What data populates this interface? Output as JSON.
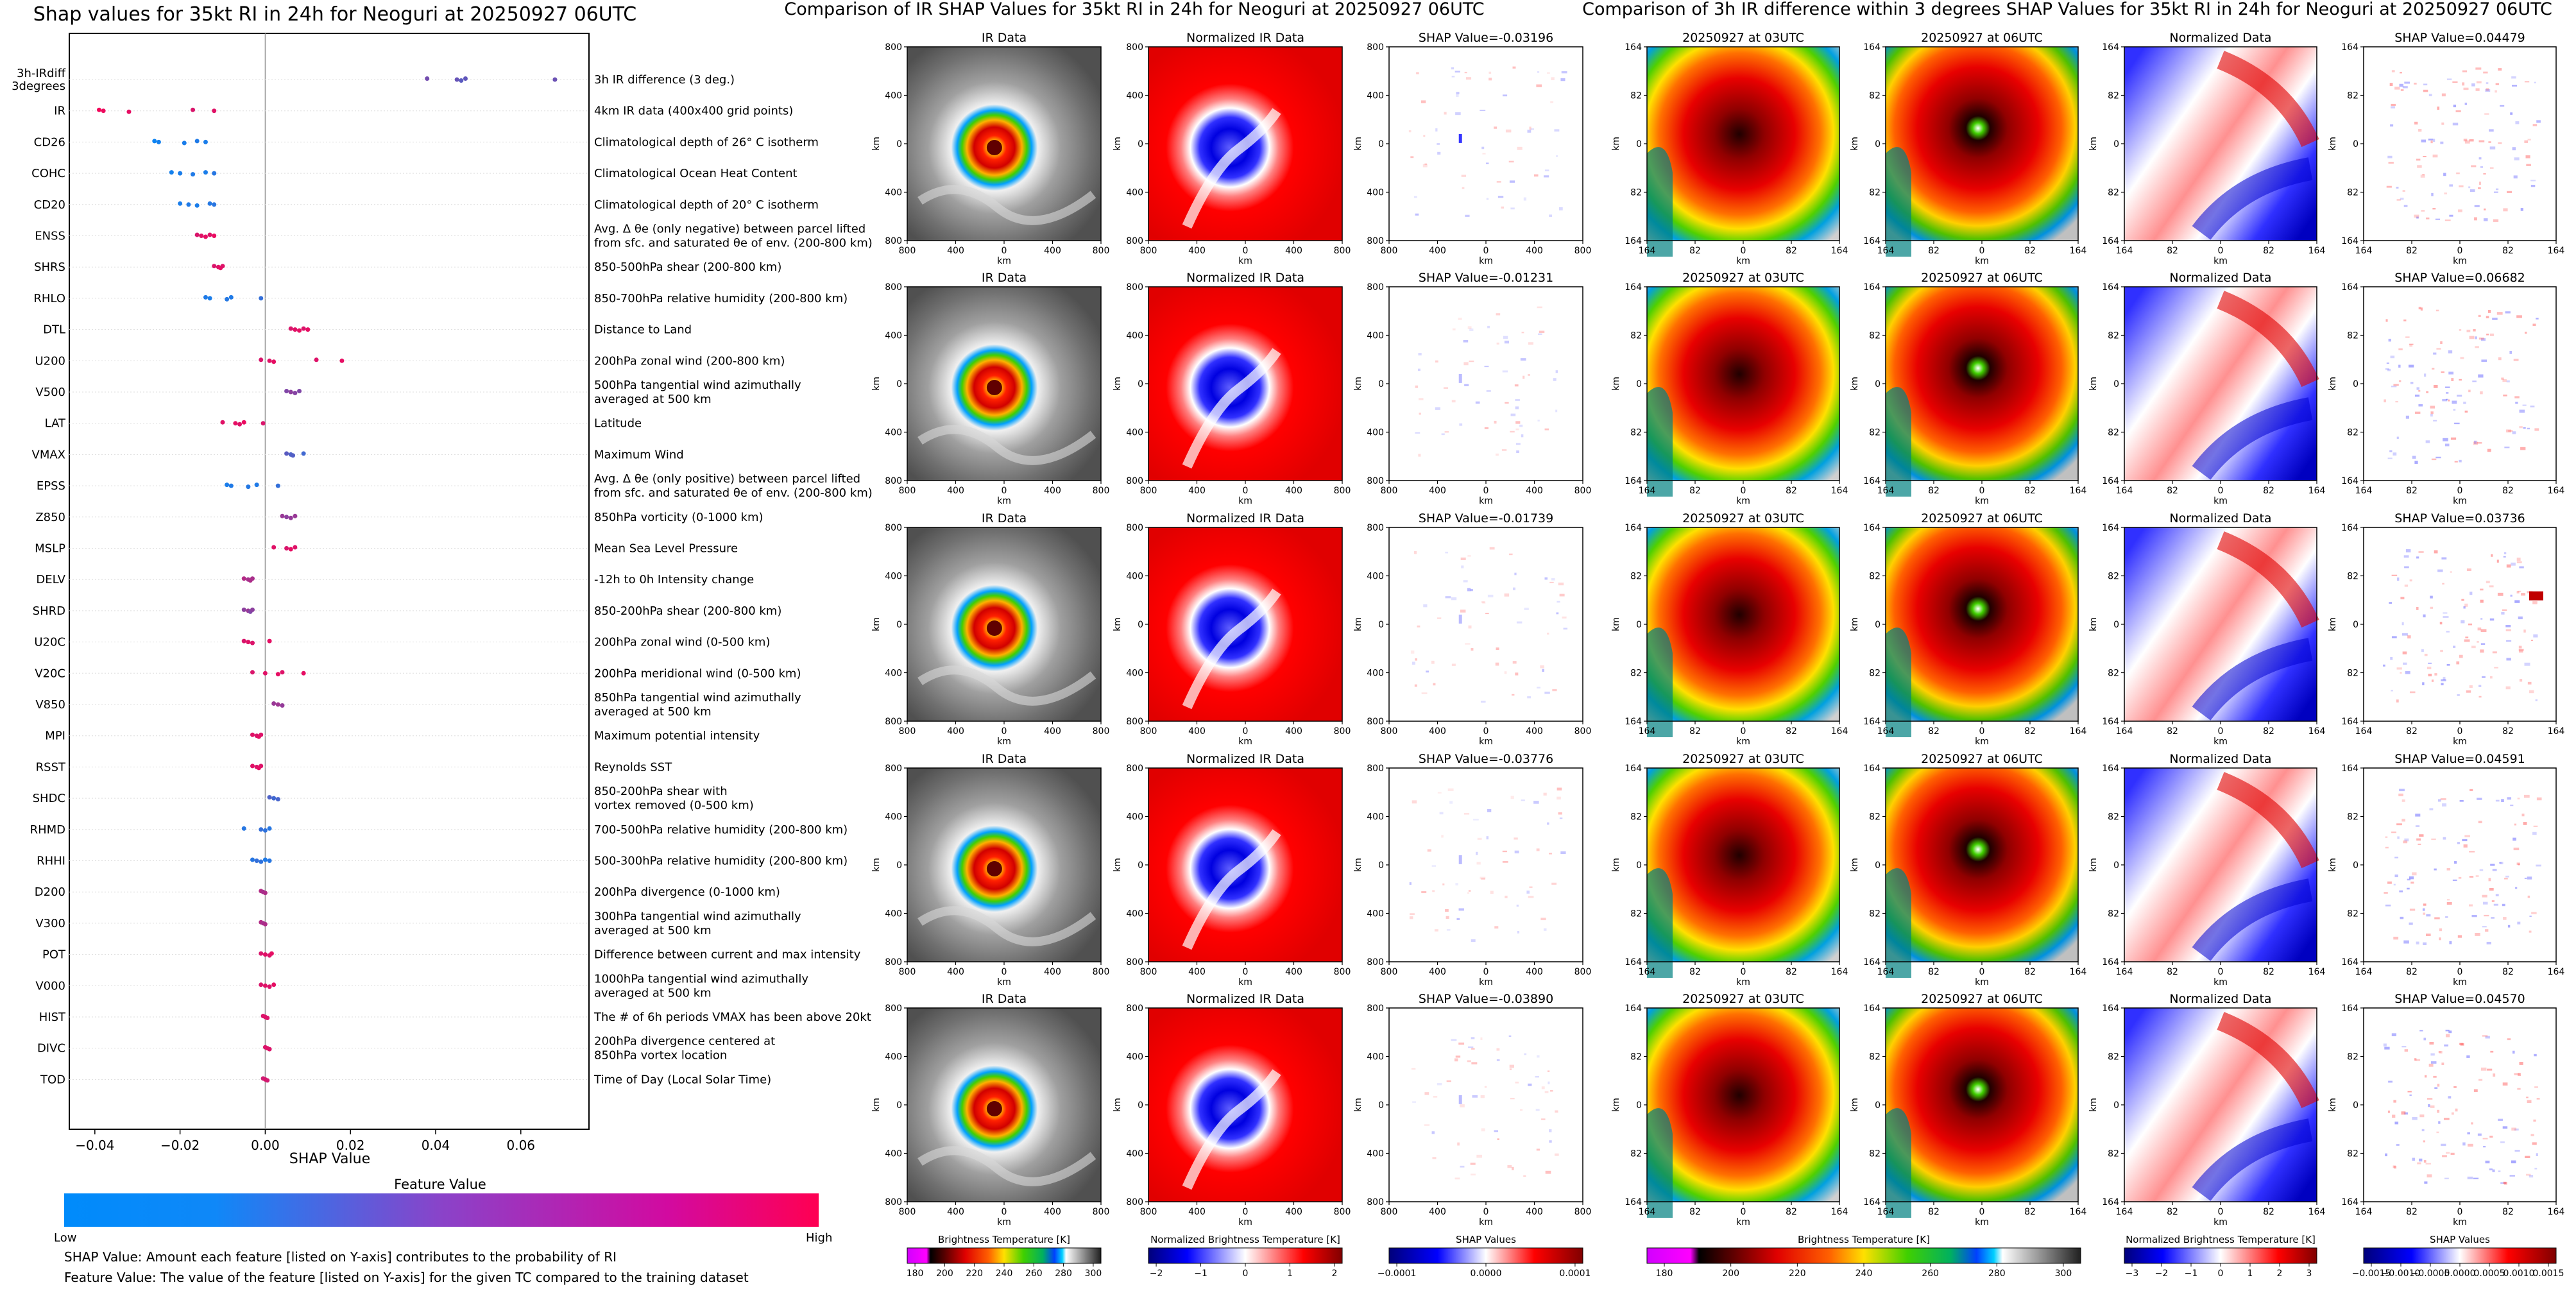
{
  "left_chart": {
    "title": "Shap values for 35kt RI in 24h for Neoguri at 20250927 06UTC",
    "xlabel": "SHAP Value",
    "x_ticks": [
      "−0.04",
      "−0.02",
      "0.00",
      "0.02",
      "0.04",
      "0.06"
    ],
    "colorbar_title": "Feature Value",
    "colorbar_low": "Low",
    "colorbar_high": "High",
    "footnote_1": "SHAP Value: Amount each feature [listed on Y-axis] contributes to the probability of RI",
    "footnote_2": "Feature Value: The value of the feature [listed on Y-axis] for the given TC compared to the training dataset"
  },
  "chart_data": [
    {
      "type": "scatter",
      "title": "Shap values for 35kt RI in 24h for Neoguri at 20250927 06UTC",
      "xlabel": "SHAP Value",
      "xlim": [
        -0.046,
        0.076
      ],
      "features": [
        {
          "code": [
            "3h-IRdiff",
            "3degrees"
          ],
          "desc": [
            "3h IR difference (3 deg.)"
          ],
          "points": [
            [
              0.038,
              0.45
            ],
            [
              0.045,
              0.4
            ],
            [
              0.046,
              0.35
            ],
            [
              0.047,
              0.38
            ],
            [
              0.068,
              0.42
            ]
          ]
        },
        {
          "code": [
            "IR"
          ],
          "desc": [
            "4km IR data (400x400 grid points)"
          ],
          "points": [
            [
              -0.039,
              0.95
            ],
            [
              -0.038,
              0.93
            ],
            [
              -0.032,
              0.9
            ],
            [
              -0.017,
              0.85
            ],
            [
              -0.012,
              0.88
            ]
          ]
        },
        {
          "code": [
            "CD26"
          ],
          "desc": [
            "Climatological depth of 26° C isotherm"
          ],
          "points": [
            [
              -0.026,
              0.05
            ],
            [
              -0.025,
              0.08
            ],
            [
              -0.019,
              0.1
            ],
            [
              -0.016,
              0.12
            ],
            [
              -0.014,
              0.1
            ]
          ]
        },
        {
          "code": [
            "COHC"
          ],
          "desc": [
            "Climatological Ocean Heat Content"
          ],
          "points": [
            [
              -0.022,
              0.08
            ],
            [
              -0.02,
              0.1
            ],
            [
              -0.017,
              0.12
            ],
            [
              -0.014,
              0.1
            ],
            [
              -0.012,
              0.15
            ]
          ]
        },
        {
          "code": [
            "CD20"
          ],
          "desc": [
            "Climatological depth of 20° C isotherm"
          ],
          "points": [
            [
              -0.02,
              0.1
            ],
            [
              -0.018,
              0.12
            ],
            [
              -0.016,
              0.1
            ],
            [
              -0.013,
              0.14
            ],
            [
              -0.012,
              0.16
            ]
          ]
        },
        {
          "code": [
            "ENSS"
          ],
          "desc": [
            "Avg. Δ θe (only negative) between parcel lifted",
            "from sfc. and saturated θe of env. (200-800 km)"
          ],
          "points": [
            [
              -0.016,
              0.85
            ],
            [
              -0.015,
              0.88
            ],
            [
              -0.014,
              0.9
            ],
            [
              -0.013,
              0.87
            ],
            [
              -0.012,
              0.92
            ]
          ]
        },
        {
          "code": [
            "SHRS"
          ],
          "desc": [
            "850-500hPa shear (200-800 km)"
          ],
          "points": [
            [
              -0.012,
              0.85
            ],
            [
              -0.011,
              0.88
            ],
            [
              -0.0105,
              0.9
            ],
            [
              -0.01,
              0.87
            ]
          ]
        },
        {
          "code": [
            "RHLO"
          ],
          "desc": [
            "850-700hPa relative humidity (200-800 km)"
          ],
          "points": [
            [
              -0.014,
              0.12
            ],
            [
              -0.013,
              0.1
            ],
            [
              -0.009,
              0.14
            ],
            [
              -0.008,
              0.12
            ],
            [
              -0.001,
              0.2
            ]
          ]
        },
        {
          "code": [
            "DTL"
          ],
          "desc": [
            "Distance to Land"
          ],
          "points": [
            [
              0.006,
              0.85
            ],
            [
              0.007,
              0.88
            ],
            [
              0.008,
              0.9
            ],
            [
              0.009,
              0.86
            ],
            [
              0.01,
              0.9
            ]
          ]
        },
        {
          "code": [
            "U200"
          ],
          "desc": [
            "200hPa zonal wind (200-800 km)"
          ],
          "points": [
            [
              -0.001,
              0.85
            ],
            [
              0.001,
              0.88
            ],
            [
              0.002,
              0.9
            ],
            [
              0.012,
              0.87
            ],
            [
              0.018,
              0.9
            ]
          ]
        },
        {
          "code": [
            "V500"
          ],
          "desc": [
            "500hPa tangential wind azimuthally",
            "averaged at 500 km"
          ],
          "points": [
            [
              0.005,
              0.5
            ],
            [
              0.006,
              0.55
            ],
            [
              0.007,
              0.52
            ],
            [
              0.008,
              0.5
            ]
          ]
        },
        {
          "code": [
            "LAT"
          ],
          "desc": [
            "Latitude"
          ],
          "points": [
            [
              -0.01,
              0.88
            ],
            [
              -0.007,
              0.9
            ],
            [
              -0.006,
              0.87
            ],
            [
              -0.005,
              0.92
            ],
            [
              -0.0005,
              0.85
            ]
          ]
        },
        {
          "code": [
            "VMAX"
          ],
          "desc": [
            "Maximum Wind"
          ],
          "points": [
            [
              0.005,
              0.35
            ],
            [
              0.006,
              0.3
            ],
            [
              0.0065,
              0.32
            ],
            [
              0.009,
              0.25
            ]
          ]
        },
        {
          "code": [
            "EPSS"
          ],
          "desc": [
            "Avg. Δ θe (only positive) between parcel lifted",
            "from sfc. and saturated θe of env. (200-800 km)"
          ],
          "points": [
            [
              -0.009,
              0.1
            ],
            [
              -0.008,
              0.12
            ],
            [
              -0.004,
              0.14
            ],
            [
              -0.002,
              0.12
            ],
            [
              0.003,
              0.2
            ]
          ]
        },
        {
          "code": [
            "Z850"
          ],
          "desc": [
            "850hPa vorticity (0-1000 km)"
          ],
          "points": [
            [
              0.004,
              0.6
            ],
            [
              0.005,
              0.55
            ],
            [
              0.006,
              0.58
            ],
            [
              0.007,
              0.6
            ]
          ]
        },
        {
          "code": [
            "MSLP"
          ],
          "desc": [
            "Mean Sea Level Pressure"
          ],
          "points": [
            [
              0.002,
              0.88
            ],
            [
              0.005,
              0.85
            ],
            [
              0.006,
              0.9
            ],
            [
              0.007,
              0.87
            ]
          ]
        },
        {
          "code": [
            "DELV"
          ],
          "desc": [
            "-12h to 0h Intensity change"
          ],
          "points": [
            [
              -0.005,
              0.7
            ],
            [
              -0.004,
              0.65
            ],
            [
              -0.0035,
              0.68
            ],
            [
              -0.003,
              0.66
            ]
          ]
        },
        {
          "code": [
            "SHRD"
          ],
          "desc": [
            "850-200hPa shear (200-800 km)"
          ],
          "points": [
            [
              -0.005,
              0.55
            ],
            [
              -0.004,
              0.6
            ],
            [
              -0.0035,
              0.5
            ],
            [
              -0.003,
              0.55
            ]
          ]
        },
        {
          "code": [
            "U20C"
          ],
          "desc": [
            "200hPa zonal wind (0-500 km)"
          ],
          "points": [
            [
              -0.005,
              0.85
            ],
            [
              -0.004,
              0.88
            ],
            [
              -0.003,
              0.86
            ],
            [
              0.001,
              0.9
            ]
          ]
        },
        {
          "code": [
            "V20C"
          ],
          "desc": [
            "200hPa meridional wind (0-500 km)"
          ],
          "points": [
            [
              -0.003,
              0.85
            ],
            [
              0.0,
              0.88
            ],
            [
              0.003,
              0.9
            ],
            [
              0.004,
              0.87
            ],
            [
              0.009,
              0.9
            ]
          ]
        },
        {
          "code": [
            "V850"
          ],
          "desc": [
            "850hPa tangential wind azimuthally",
            "averaged at 500 km"
          ],
          "points": [
            [
              0.002,
              0.6
            ],
            [
              0.003,
              0.62
            ],
            [
              0.004,
              0.58
            ]
          ]
        },
        {
          "code": [
            "MPI"
          ],
          "desc": [
            "Maximum potential intensity"
          ],
          "points": [
            [
              -0.003,
              0.88
            ],
            [
              -0.002,
              0.85
            ],
            [
              -0.0015,
              0.9
            ],
            [
              -0.001,
              0.87
            ]
          ]
        },
        {
          "code": [
            "RSST"
          ],
          "desc": [
            "Reynolds SST"
          ],
          "points": [
            [
              -0.003,
              0.88
            ],
            [
              -0.002,
              0.85
            ],
            [
              -0.0015,
              0.9
            ],
            [
              -0.001,
              0.87
            ]
          ]
        },
        {
          "code": [
            "SHDC"
          ],
          "desc": [
            "850-200hPa shear with",
            "vortex removed (0-500 km)"
          ],
          "points": [
            [
              0.001,
              0.3
            ],
            [
              0.002,
              0.25
            ],
            [
              0.003,
              0.28
            ]
          ]
        },
        {
          "code": [
            "RHMD"
          ],
          "desc": [
            "700-500hPa relative humidity (200-800 km)"
          ],
          "points": [
            [
              -0.005,
              0.15
            ],
            [
              -0.001,
              0.2
            ],
            [
              0.0,
              0.18
            ],
            [
              0.001,
              0.15
            ]
          ]
        },
        {
          "code": [
            "RHHI"
          ],
          "desc": [
            "500-300hPa relative humidity (200-800 km)"
          ],
          "points": [
            [
              -0.003,
              0.15
            ],
            [
              -0.002,
              0.2
            ],
            [
              -0.001,
              0.18
            ],
            [
              0.0,
              0.12
            ],
            [
              0.001,
              0.15
            ]
          ]
        },
        {
          "code": [
            "D200"
          ],
          "desc": [
            "200hPa divergence (0-1000 km)"
          ],
          "points": [
            [
              -0.001,
              0.7
            ],
            [
              -0.0005,
              0.65
            ],
            [
              0.0,
              0.68
            ]
          ]
        },
        {
          "code": [
            "V300"
          ],
          "desc": [
            "300hPa tangential wind azimuthally",
            "averaged at 500 km"
          ],
          "points": [
            [
              -0.001,
              0.7
            ],
            [
              -0.0005,
              0.65
            ],
            [
              0.0,
              0.68
            ]
          ]
        },
        {
          "code": [
            "POT"
          ],
          "desc": [
            "Difference between current and max intensity"
          ],
          "points": [
            [
              -0.001,
              0.85
            ],
            [
              0.0,
              0.88
            ],
            [
              0.001,
              0.86
            ],
            [
              0.0015,
              0.9
            ]
          ]
        },
        {
          "code": [
            "V000"
          ],
          "desc": [
            "1000hPa tangential wind azimuthally",
            "averaged at 500 km"
          ],
          "points": [
            [
              -0.001,
              0.85
            ],
            [
              0.0,
              0.88
            ],
            [
              0.001,
              0.86
            ],
            [
              0.002,
              0.9
            ]
          ]
        },
        {
          "code": [
            "HIST"
          ],
          "desc": [
            "The # of 6h periods VMAX has been above 20kt"
          ],
          "points": [
            [
              -0.0005,
              0.85
            ],
            [
              0.0,
              0.88
            ],
            [
              0.0005,
              0.86
            ]
          ]
        },
        {
          "code": [
            "DIVC"
          ],
          "desc": [
            "200hPa divergence centered at",
            "850hPa vortex location"
          ],
          "points": [
            [
              0.0,
              0.85
            ],
            [
              0.0005,
              0.88
            ],
            [
              0.001,
              0.86
            ]
          ]
        },
        {
          "code": [
            "TOD"
          ],
          "desc": [
            "Time of Day (Local Solar Time)"
          ],
          "points": [
            [
              -0.0005,
              0.8
            ],
            [
              0.0,
              0.85
            ],
            [
              0.0005,
              0.82
            ]
          ]
        }
      ]
    },
    {
      "type": "heatmap",
      "title": "Comparison of IR SHAP Values for 35kt RI in 24h for Neoguri at 20250927 06UTC",
      "column_titles": [
        "IR Data",
        "Normalized IR Data"
      ],
      "shap_titles": [
        "SHAP Value=-0.03196",
        "SHAP Value=-0.01231",
        "SHAP Value=-0.01739",
        "SHAP Value=-0.03776",
        "SHAP Value=-0.03890"
      ],
      "tick_labels": [
        "800",
        "400",
        "0",
        "400",
        "800"
      ],
      "axis_label": "km",
      "colorbars": [
        {
          "title": "Brightness Temperature [K]",
          "ticks": [
            "180",
            "200",
            "220",
            "240",
            "260",
            "280",
            "300"
          ]
        },
        {
          "title": "Normalized Brightness Temperature [K]",
          "ticks": [
            "−2",
            "−1",
            "0",
            "1",
            "2"
          ]
        },
        {
          "title": "SHAP Values",
          "ticks": [
            "−0.0001",
            "0.0000",
            "0.0001"
          ]
        }
      ]
    },
    {
      "type": "heatmap",
      "title": "Comparison of 3h IR difference within 3 degrees SHAP Values for 35kt RI in 24h for Neoguri at 20250927 06UTC",
      "column_titles": [
        "20250927 at 03UTC",
        "20250927 at 06UTC",
        "Normalized Data"
      ],
      "shap_titles": [
        "SHAP Value=0.04479",
        "SHAP Value=0.06682",
        "SHAP Value=0.03736",
        "SHAP Value=0.04591",
        "SHAP Value=0.04570"
      ],
      "tick_labels": [
        "164",
        "82",
        "0",
        "82",
        "164"
      ],
      "axis_label": "km",
      "colorbars": [
        {
          "title": "Brightness Temperature [K]",
          "ticks": [
            "180",
            "200",
            "220",
            "240",
            "260",
            "280",
            "300"
          ]
        },
        {
          "title": "Normalized Brightness Temperature [K]",
          "ticks": [
            "−3",
            "−2",
            "−1",
            "0",
            "1",
            "2",
            "3"
          ]
        },
        {
          "title": "SHAP Values",
          "ticks": [
            "−0.0015",
            "−0.0010",
            "−0.0005",
            "0.0000",
            "0.0005",
            "0.0010",
            "0.0015"
          ]
        }
      ]
    }
  ]
}
